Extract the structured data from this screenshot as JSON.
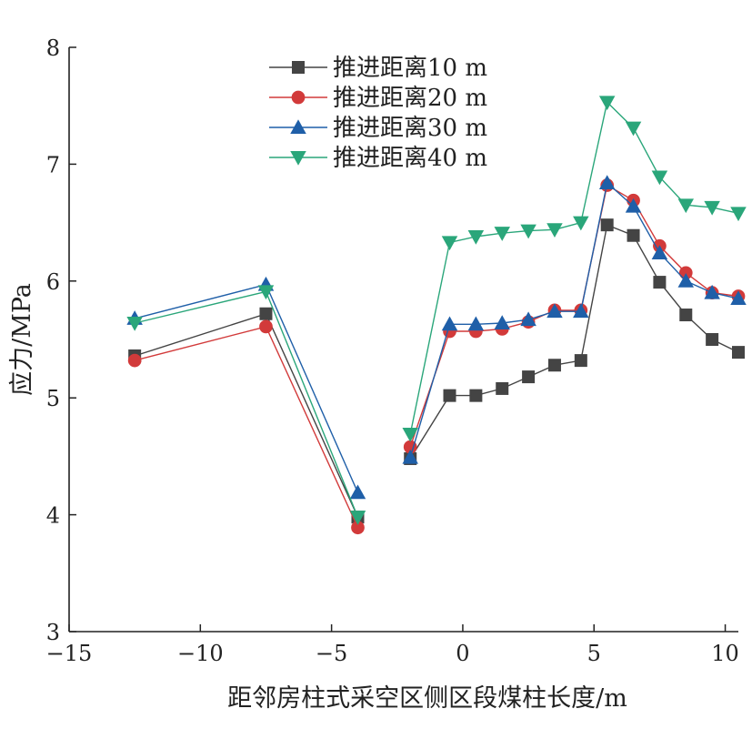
{
  "chart_data": {
    "type": "line",
    "title": "",
    "xlabel": "距邻房柱式采空区侧区段煤柱长度/m",
    "ylabel": "应力/MPa",
    "xlim": [
      -15,
      10.5
    ],
    "ylim": [
      3,
      8
    ],
    "x_ticks": [
      -15,
      -10,
      -5,
      0,
      5,
      10
    ],
    "x_tick_labels": [
      "−15",
      "−10",
      "−5",
      "0",
      "5",
      "10"
    ],
    "y_ticks": [
      3,
      4,
      5,
      6,
      7,
      8
    ],
    "y_tick_labels": [
      "3",
      "4",
      "5",
      "6",
      "7",
      "8"
    ],
    "grid": false,
    "legend_position": "top-center",
    "series": [
      {
        "name": "推进距离10 m",
        "color": "#444444",
        "marker": "square",
        "segments": [
          [
            [
              -12.5,
              5.36
            ],
            [
              -7.5,
              5.72
            ],
            [
              -4,
              3.98
            ]
          ],
          [
            [
              -2,
              4.48
            ],
            [
              -0.5,
              5.02
            ],
            [
              0.5,
              5.02
            ],
            [
              1.5,
              5.08
            ],
            [
              2.5,
              5.18
            ],
            [
              3.5,
              5.28
            ],
            [
              4.5,
              5.32
            ],
            [
              5.5,
              6.48
            ],
            [
              6.5,
              6.39
            ],
            [
              7.5,
              5.99
            ],
            [
              8.5,
              5.71
            ],
            [
              9.5,
              5.5
            ],
            [
              10.5,
              5.39
            ]
          ]
        ]
      },
      {
        "name": "推进距离20 m",
        "color": "#d23a3a",
        "marker": "circle",
        "segments": [
          [
            [
              -12.5,
              5.32
            ],
            [
              -7.5,
              5.61
            ],
            [
              -4,
              3.89
            ]
          ],
          [
            [
              -2,
              4.58
            ],
            [
              -0.5,
              5.57
            ],
            [
              0.5,
              5.57
            ],
            [
              1.5,
              5.59
            ],
            [
              2.5,
              5.65
            ],
            [
              3.5,
              5.75
            ],
            [
              4.5,
              5.75
            ],
            [
              5.5,
              6.82
            ],
            [
              6.5,
              6.69
            ],
            [
              7.5,
              6.3
            ],
            [
              8.5,
              6.07
            ],
            [
              9.5,
              5.9
            ],
            [
              10.5,
              5.87
            ]
          ]
        ]
      },
      {
        "name": "推进距离30 m",
        "color": "#1f5fa8",
        "marker": "triangle-up",
        "segments": [
          [
            [
              -12.5,
              5.68
            ],
            [
              -7.5,
              5.97
            ],
            [
              -4,
              4.19
            ]
          ],
          [
            [
              -2,
              4.49
            ],
            [
              -0.5,
              5.63
            ],
            [
              0.5,
              5.63
            ],
            [
              1.5,
              5.64
            ],
            [
              2.5,
              5.67
            ],
            [
              3.5,
              5.74
            ],
            [
              4.5,
              5.74
            ],
            [
              5.5,
              6.84
            ],
            [
              6.5,
              6.64
            ],
            [
              7.5,
              6.24
            ],
            [
              8.5,
              6.0
            ],
            [
              9.5,
              5.9
            ],
            [
              10.5,
              5.85
            ]
          ]
        ]
      },
      {
        "name": "推进距离40 m",
        "color": "#2aa67a",
        "marker": "triangle-down",
        "segments": [
          [
            [
              -12.5,
              5.64
            ],
            [
              -7.5,
              5.91
            ],
            [
              -4,
              3.98
            ]
          ],
          [
            [
              -2,
              4.69
            ],
            [
              -0.5,
              6.33
            ],
            [
              0.5,
              6.38
            ],
            [
              1.5,
              6.41
            ],
            [
              2.5,
              6.43
            ],
            [
              3.5,
              6.44
            ],
            [
              4.5,
              6.5
            ],
            [
              5.5,
              7.53
            ],
            [
              6.5,
              7.31
            ],
            [
              7.5,
              6.89
            ],
            [
              8.5,
              6.65
            ],
            [
              9.5,
              6.63
            ],
            [
              10.5,
              6.58
            ]
          ]
        ]
      }
    ]
  }
}
